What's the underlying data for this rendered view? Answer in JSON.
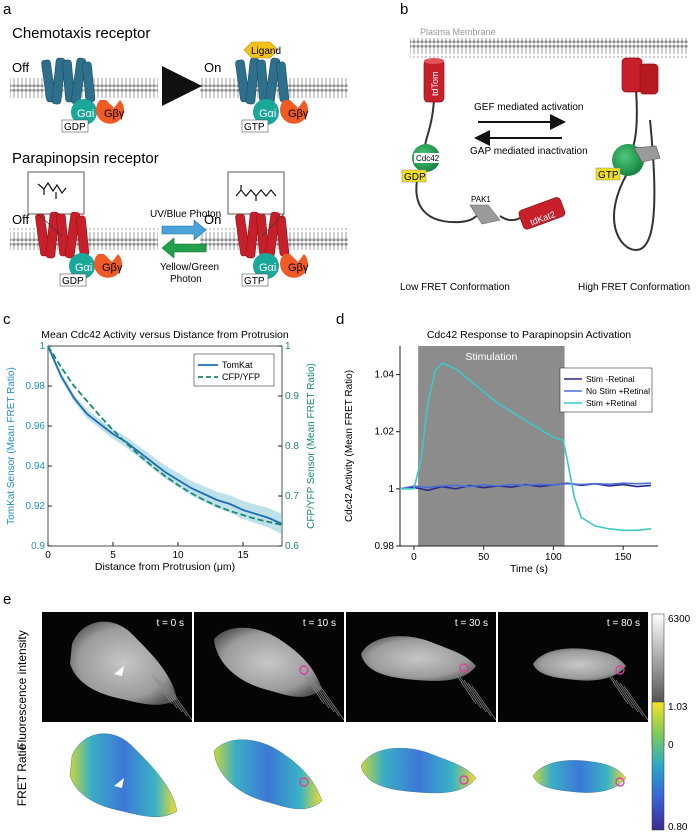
{
  "panel_a": {
    "letter": "a",
    "chemotaxis_title": "Chemotaxis receptor",
    "off": "Off",
    "on": "On",
    "ligand": "Ligand",
    "galpha": "Gαi",
    "gbg": "Gβγ",
    "gdp": "GDP",
    "gtp": "GTP",
    "parapinopsin_title": "Parapinopsin receptor",
    "uv_label": "UV/Blue Photon",
    "yg_label_1": "Yellow/Green",
    "yg_label_2": "Photon"
  },
  "panel_b": {
    "letter": "b",
    "membrane": "Plasma Membrane",
    "tdtom": "tdTom",
    "cdc42": "Cdc42",
    "gdp": "GDP",
    "gtp": "GTP",
    "pak1": "PAK1",
    "tdkat2": "tdKat2",
    "gef": "GEF mediated activation",
    "gap": "GAP mediated inactivation",
    "low": "Low FRET Conformation",
    "high": "High FRET Conformation"
  },
  "panel_c": {
    "letter": "c"
  },
  "panel_d": {
    "letter": "d",
    "stimulation": "Stimulation"
  },
  "panel_e": {
    "letter": "e",
    "row1_label": "Fluorescence intensity",
    "row2_label": "FRET Ratio",
    "times": [
      "t = 0 s",
      "t = 10 s",
      "t = 30 s",
      "t = 80 s"
    ],
    "cb1_max": "6300",
    "cb1_min": "0",
    "cb2_max": "1.03",
    "cb2_min": "0.80"
  },
  "chart_data": [
    {
      "type": "line",
      "title": "Mean Cdc42 Activity versus Distance from Protrusion",
      "xlabel": "Distance from Protrusion (μm)",
      "ylabel": "TomKat Sensor (Mean FRET Ratio)",
      "y2label": "CFP/YFP Sensor (Mean FRET Ratio)",
      "xlim": [
        0,
        18
      ],
      "ylim": [
        0.9,
        1.0
      ],
      "y2lim": [
        0.6,
        1.0
      ],
      "xticks": [
        "0",
        "5",
        "10",
        "15"
      ],
      "yticks": [
        "0.9",
        "0.92",
        "0.94",
        "0.96",
        "0.98",
        "1"
      ],
      "y2ticks": [
        "0.6",
        "0.7",
        "0.8",
        "0.9",
        "1"
      ],
      "legend_position": "top-right",
      "series": [
        {
          "name": "TomKat",
          "axis": "left",
          "color": "#1f6fb4",
          "x": [
            0,
            1,
            2,
            3,
            4,
            5,
            6,
            7,
            8,
            9,
            10,
            11,
            12,
            13,
            14,
            15,
            16,
            17,
            18
          ],
          "values": [
            1.0,
            0.985,
            0.974,
            0.966,
            0.961,
            0.956,
            0.952,
            0.947,
            0.942,
            0.937,
            0.933,
            0.929,
            0.926,
            0.923,
            0.921,
            0.918,
            0.916,
            0.914,
            0.911
          ]
        },
        {
          "name": "CFP/YFP",
          "axis": "right",
          "color": "#1a8a6a",
          "x": [
            0,
            1,
            2,
            3,
            4,
            5,
            6,
            7,
            8,
            9,
            10,
            11,
            12,
            13,
            14,
            15,
            16,
            17,
            18
          ],
          "values": [
            1.0,
            0.958,
            0.92,
            0.89,
            0.86,
            0.832,
            0.806,
            0.782,
            0.76,
            0.74,
            0.722,
            0.706,
            0.692,
            0.68,
            0.67,
            0.662,
            0.654,
            0.648,
            0.642
          ]
        }
      ]
    },
    {
      "type": "line",
      "title": "Cdc42 Response to Parapinopsin Activation",
      "xlabel": "Time (s)",
      "ylabel": "Cdc42 Activity (Mean FRET Ratio)",
      "xlim": [
        -10,
        175
      ],
      "ylim": [
        0.98,
        1.05
      ],
      "xticks": [
        "0",
        "50",
        "100",
        "150"
      ],
      "yticks": [
        "0.98",
        "1",
        "1.02",
        "1.04"
      ],
      "stimulation_window": [
        3,
        108
      ],
      "legend_position": "top-right",
      "series": [
        {
          "name": "Stim -Retinal",
          "color": "#2a2a8c",
          "x": [
            -10,
            0,
            10,
            20,
            30,
            40,
            50,
            60,
            70,
            80,
            90,
            100,
            110,
            120,
            130,
            140,
            150,
            160,
            170
          ],
          "values": [
            1.0,
            1.0005,
            0.9995,
            1.0008,
            1.0,
            1.0012,
            1.0004,
            1.001,
            1.0006,
            1.0015,
            1.0008,
            1.0014,
            1.002,
            1.0012,
            1.0018,
            1.001,
            1.0015,
            1.0008,
            1.0012
          ]
        },
        {
          "name": "No Stim +Retinal",
          "color": "#4a6fd8",
          "x": [
            -10,
            0,
            10,
            20,
            30,
            40,
            50,
            60,
            70,
            80,
            90,
            100,
            110,
            120,
            130,
            140,
            150,
            160,
            170
          ],
          "values": [
            1.0,
            1.001,
            1.0005,
            1.001,
            1.0012,
            1.0008,
            1.0014,
            1.001,
            1.0015,
            1.0012,
            1.0016,
            1.0014,
            1.0018,
            1.0015,
            1.0018,
            1.0016,
            1.002,
            1.0018,
            1.002
          ]
        },
        {
          "name": "Stim +Retinal",
          "color": "#3cc8c4",
          "x": [
            -10,
            0,
            5,
            10,
            15,
            20,
            30,
            40,
            50,
            60,
            70,
            80,
            90,
            100,
            107,
            110,
            115,
            120,
            130,
            140,
            150,
            160,
            170
          ],
          "values": [
            1.0,
            1.0,
            1.01,
            1.03,
            1.041,
            1.044,
            1.042,
            1.038,
            1.034,
            1.03,
            1.027,
            1.024,
            1.021,
            1.018,
            1.017,
            1.01,
            0.997,
            0.99,
            0.987,
            0.986,
            0.9855,
            0.9855,
            0.986
          ]
        }
      ]
    }
  ]
}
